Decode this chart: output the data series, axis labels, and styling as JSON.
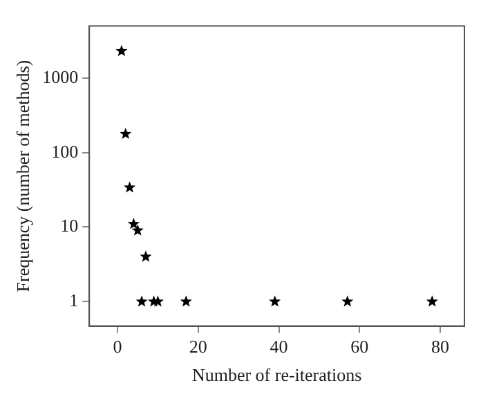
{
  "chart_data": {
    "type": "scatter",
    "xlabel": "Number of re-iterations",
    "ylabel": "Frequency (number of methods)",
    "x": [
      1,
      2,
      3,
      4,
      5,
      6,
      7,
      9,
      10,
      17,
      39,
      57,
      78
    ],
    "values": [
      2300,
      178,
      34,
      11,
      9,
      1,
      4,
      1,
      1,
      1,
      1,
      1,
      1
    ],
    "color": "#000000",
    "marker": "star",
    "log": "y",
    "grid": false,
    "legend": false,
    "xlim": [
      -7,
      86
    ],
    "xticks": [
      0,
      20,
      40,
      60,
      80
    ],
    "ylim": [
      0.47,
      5000
    ],
    "yticks": [
      1,
      10,
      100,
      1000
    ]
  }
}
